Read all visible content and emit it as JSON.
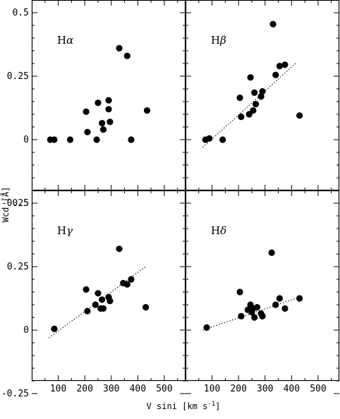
{
  "figure": {
    "xlabel_main": "V sini [km s",
    "xlabel_sup": "-1",
    "xlabel_close": "]",
    "ylabel": "Wcd [Å]",
    "xticks": [
      "100",
      "200",
      "300",
      "400",
      "500"
    ],
    "yticks": [
      "0.5",
      "0.25",
      "0",
      "-0.25"
    ],
    "point_color": "#000000",
    "fit_line_style": "dotted"
  },
  "chart_data": [
    {
      "type": "scatter",
      "panel": "top-left",
      "label_letter": "H",
      "label_greek": "α",
      "xlim": [
        0,
        580
      ],
      "ylim": [
        -0.2,
        0.55
      ],
      "points": [
        {
          "x": 70,
          "y": 0.0
        },
        {
          "x": 85,
          "y": 0.0
        },
        {
          "x": 145,
          "y": 0.0
        },
        {
          "x": 205,
          "y": 0.11
        },
        {
          "x": 210,
          "y": 0.03
        },
        {
          "x": 245,
          "y": 0.0
        },
        {
          "x": 250,
          "y": 0.145
        },
        {
          "x": 265,
          "y": 0.065
        },
        {
          "x": 270,
          "y": 0.04
        },
        {
          "x": 290,
          "y": 0.155
        },
        {
          "x": 290,
          "y": 0.12
        },
        {
          "x": 295,
          "y": 0.07
        },
        {
          "x": 330,
          "y": 0.36
        },
        {
          "x": 360,
          "y": 0.33
        },
        {
          "x": 375,
          "y": 0.0
        },
        {
          "x": 435,
          "y": 0.115
        }
      ],
      "fit": null
    },
    {
      "type": "scatter",
      "panel": "top-right",
      "label_letter": "H",
      "label_greek": "β",
      "xlim": [
        0,
        580
      ],
      "ylim": [
        -0.2,
        0.55
      ],
      "points": [
        {
          "x": 75,
          "y": 0.0
        },
        {
          "x": 90,
          "y": 0.005
        },
        {
          "x": 140,
          "y": 0.0
        },
        {
          "x": 205,
          "y": 0.165
        },
        {
          "x": 210,
          "y": 0.09
        },
        {
          "x": 240,
          "y": 0.1
        },
        {
          "x": 245,
          "y": 0.245
        },
        {
          "x": 255,
          "y": 0.115
        },
        {
          "x": 260,
          "y": 0.185
        },
        {
          "x": 265,
          "y": 0.14
        },
        {
          "x": 285,
          "y": 0.17
        },
        {
          "x": 290,
          "y": 0.19
        },
        {
          "x": 330,
          "y": 0.455
        },
        {
          "x": 340,
          "y": 0.255
        },
        {
          "x": 355,
          "y": 0.29
        },
        {
          "x": 375,
          "y": 0.295
        },
        {
          "x": 430,
          "y": 0.095
        }
      ],
      "fit": {
        "x": [
          65,
          415
        ],
        "y": [
          -0.03,
          0.3
        ]
      }
    },
    {
      "type": "scatter",
      "panel": "bottom-left",
      "label_letter": "H",
      "label_greek": "γ",
      "xlim": [
        0,
        580
      ],
      "ylim": [
        -0.2,
        0.55
      ],
      "points": [
        {
          "x": 85,
          "y": 0.005
        },
        {
          "x": 205,
          "y": 0.16
        },
        {
          "x": 210,
          "y": 0.075
        },
        {
          "x": 240,
          "y": 0.1
        },
        {
          "x": 250,
          "y": 0.145
        },
        {
          "x": 260,
          "y": 0.085
        },
        {
          "x": 265,
          "y": 0.12
        },
        {
          "x": 270,
          "y": 0.085
        },
        {
          "x": 290,
          "y": 0.13
        },
        {
          "x": 295,
          "y": 0.115
        },
        {
          "x": 330,
          "y": 0.32
        },
        {
          "x": 345,
          "y": 0.185
        },
        {
          "x": 360,
          "y": 0.18
        },
        {
          "x": 375,
          "y": 0.2
        },
        {
          "x": 430,
          "y": 0.09
        }
      ],
      "fit": {
        "x": [
          65,
          430
        ],
        "y": [
          -0.03,
          0.25
        ]
      }
    },
    {
      "type": "scatter",
      "panel": "bottom-right",
      "label_letter": "H",
      "label_greek": "δ",
      "xlim": [
        0,
        580
      ],
      "ylim": [
        -0.2,
        0.55
      ],
      "points": [
        {
          "x": 80,
          "y": 0.01
        },
        {
          "x": 205,
          "y": 0.15
        },
        {
          "x": 210,
          "y": 0.055
        },
        {
          "x": 235,
          "y": 0.08
        },
        {
          "x": 245,
          "y": 0.1
        },
        {
          "x": 250,
          "y": 0.07
        },
        {
          "x": 255,
          "y": 0.085
        },
        {
          "x": 260,
          "y": 0.05
        },
        {
          "x": 270,
          "y": 0.09
        },
        {
          "x": 285,
          "y": 0.065
        },
        {
          "x": 290,
          "y": 0.055
        },
        {
          "x": 325,
          "y": 0.305
        },
        {
          "x": 340,
          "y": 0.1
        },
        {
          "x": 355,
          "y": 0.125
        },
        {
          "x": 375,
          "y": 0.085
        },
        {
          "x": 430,
          "y": 0.125
        }
      ],
      "fit": {
        "x": [
          65,
          430
        ],
        "y": [
          0.0,
          0.13
        ]
      }
    }
  ]
}
